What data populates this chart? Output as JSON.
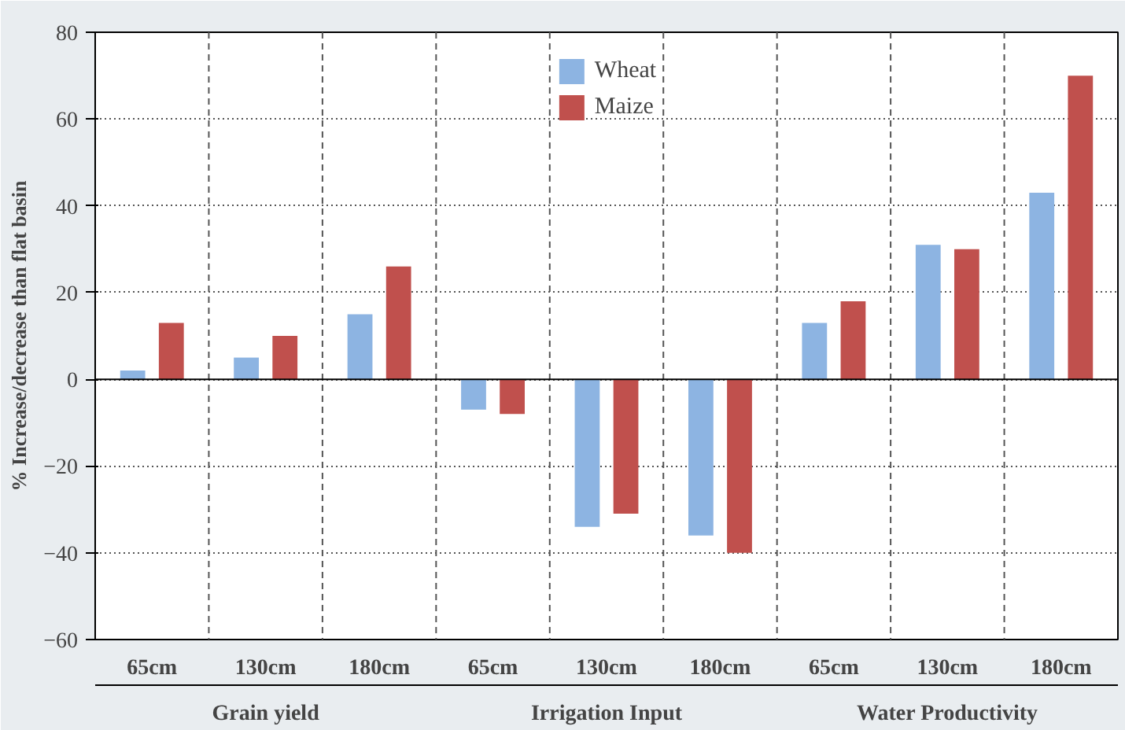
{
  "chart_data": {
    "type": "bar",
    "ylabel": "% Increase/decrease than flat basin",
    "categories": [
      "65cm",
      "130cm",
      "180cm",
      "65cm",
      "130cm",
      "180cm",
      "65cm",
      "130cm",
      "180cm"
    ],
    "annotations": [
      "Grain yield",
      "Irrigation Input",
      "Water Productivity"
    ],
    "series": [
      {
        "name": "Wheat",
        "color": "#8db4e2",
        "values": [
          2,
          5,
          15,
          -7,
          -34,
          -36,
          13,
          31,
          43
        ]
      },
      {
        "name": "Maize",
        "color": "#c0504d",
        "values": [
          13,
          10,
          26,
          -8,
          -31,
          -40,
          18,
          30,
          70
        ]
      }
    ],
    "ylim": [
      -60,
      80
    ],
    "yticks": [
      -60,
      -40,
      -20,
      0,
      20,
      40,
      60,
      80
    ],
    "grid": true,
    "legend": "top"
  }
}
